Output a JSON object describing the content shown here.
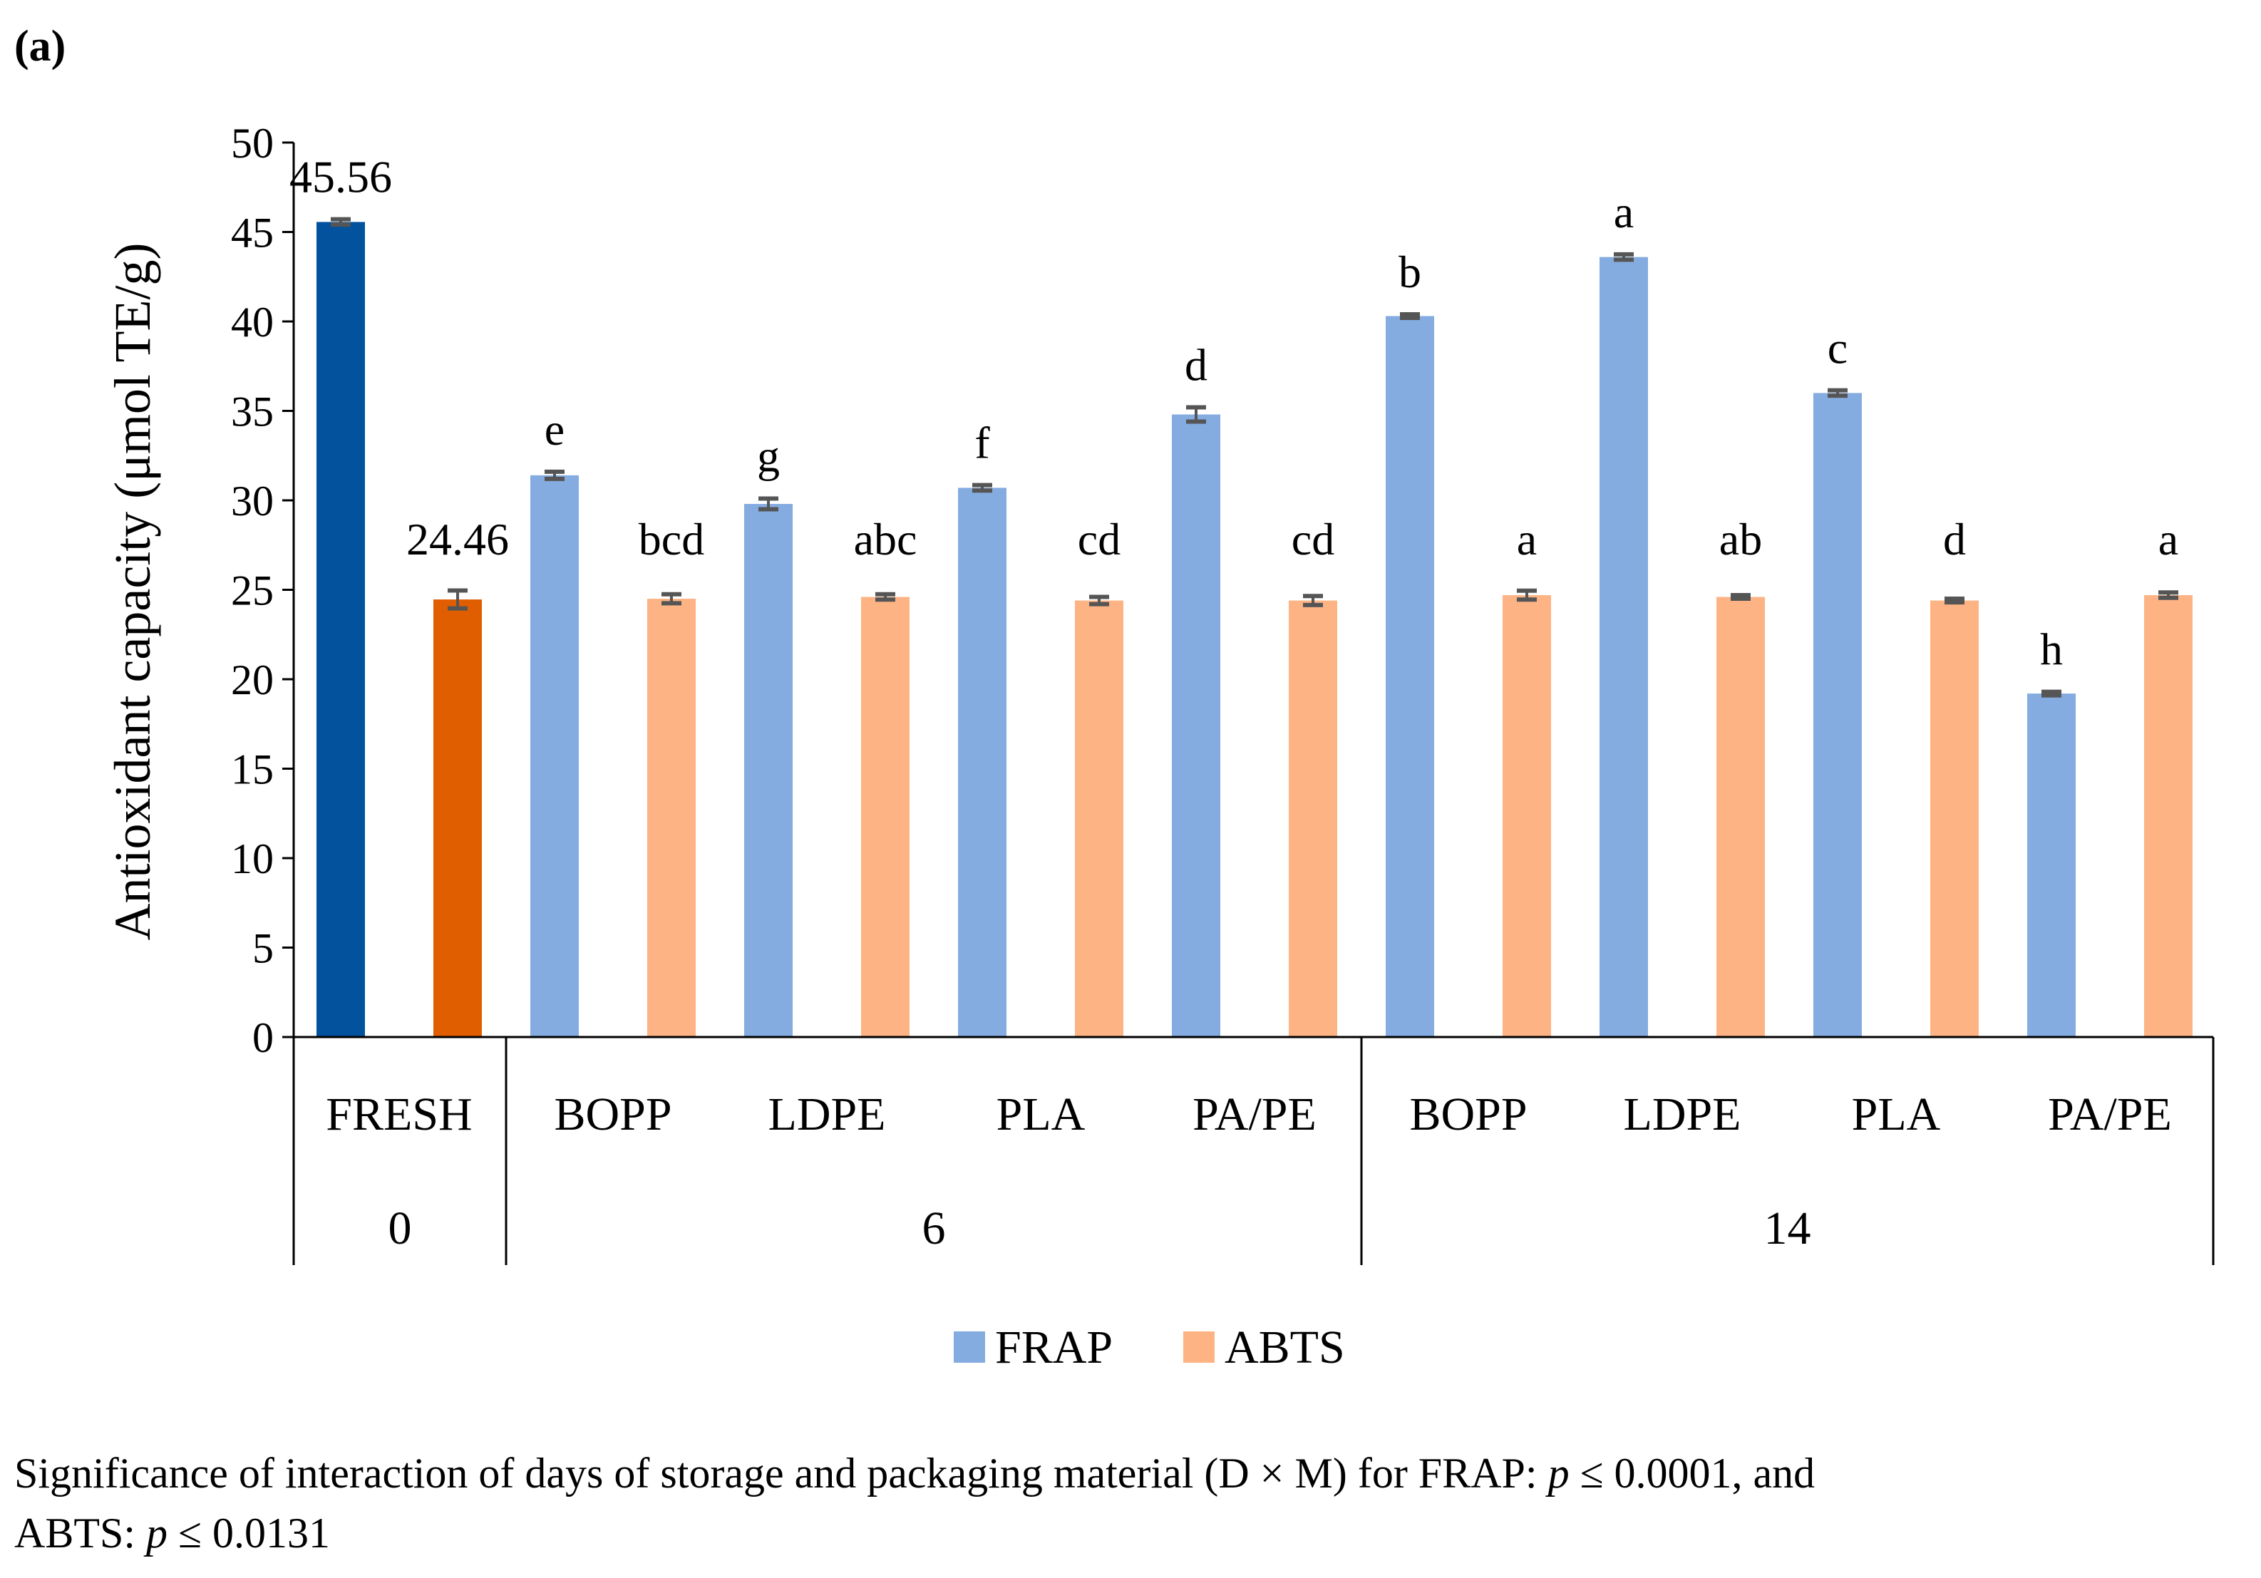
{
  "panel_label": "(a)",
  "caption": {
    "line1_pre": "Significance of interaction of days of storage and packaging material (D × M) for FRAP: ",
    "p1_symbol": "p",
    "line1_post": " ≤ 0.0001, and",
    "line2_pre": "ABTS: ",
    "p2_symbol": "p",
    "line2_post": " ≤ 0.0131"
  },
  "colors": {
    "frap": "#84ACE0",
    "abts": "#FDB384",
    "fresh_frap": "#02529E",
    "fresh_abts": "#E15E00",
    "error_bar": "#555555",
    "axis": "#000000"
  },
  "chart_data": {
    "type": "bar",
    "ylabel": "Antioxidant capacity (μmol TE/g)",
    "ylim": [
      0,
      50
    ],
    "yticks": [
      "0",
      "5",
      "10",
      "15",
      "20",
      "25",
      "30",
      "35",
      "40",
      "45",
      "50"
    ],
    "categories": [
      "FRESH",
      "BOPP",
      "LDPE",
      "PLA",
      "PA/PE",
      "BOPP",
      "LDPE",
      "PLA",
      "PA/PE"
    ],
    "groups": [
      {
        "label": "0",
        "span": 1
      },
      {
        "label": "6",
        "span": 4
      },
      {
        "label": "14",
        "span": 4
      }
    ],
    "series": [
      {
        "name": "FRAP",
        "values": [
          45.56,
          31.4,
          29.8,
          30.7,
          34.8,
          40.3,
          43.6,
          36.0,
          19.2
        ],
        "errors": [
          0.15,
          0.2,
          0.3,
          0.15,
          0.4,
          0.1,
          0.15,
          0.15,
          0.1
        ],
        "labels": [
          "45.56",
          "e",
          "g",
          "f",
          "d",
          "b",
          "a",
          "c",
          "h"
        ]
      },
      {
        "name": "ABTS",
        "values": [
          24.46,
          24.5,
          24.6,
          24.4,
          24.4,
          24.7,
          24.6,
          24.4,
          24.7
        ],
        "errors": [
          0.5,
          0.25,
          0.15,
          0.2,
          0.25,
          0.25,
          0.1,
          0.1,
          0.15
        ],
        "labels": [
          "24.46",
          "bcd",
          "abc",
          "cd",
          "cd",
          "a",
          "ab",
          "d",
          "a"
        ]
      }
    ],
    "legend": [
      "FRAP",
      "ABTS"
    ],
    "legend_position": "bottom-center",
    "grid": false
  }
}
